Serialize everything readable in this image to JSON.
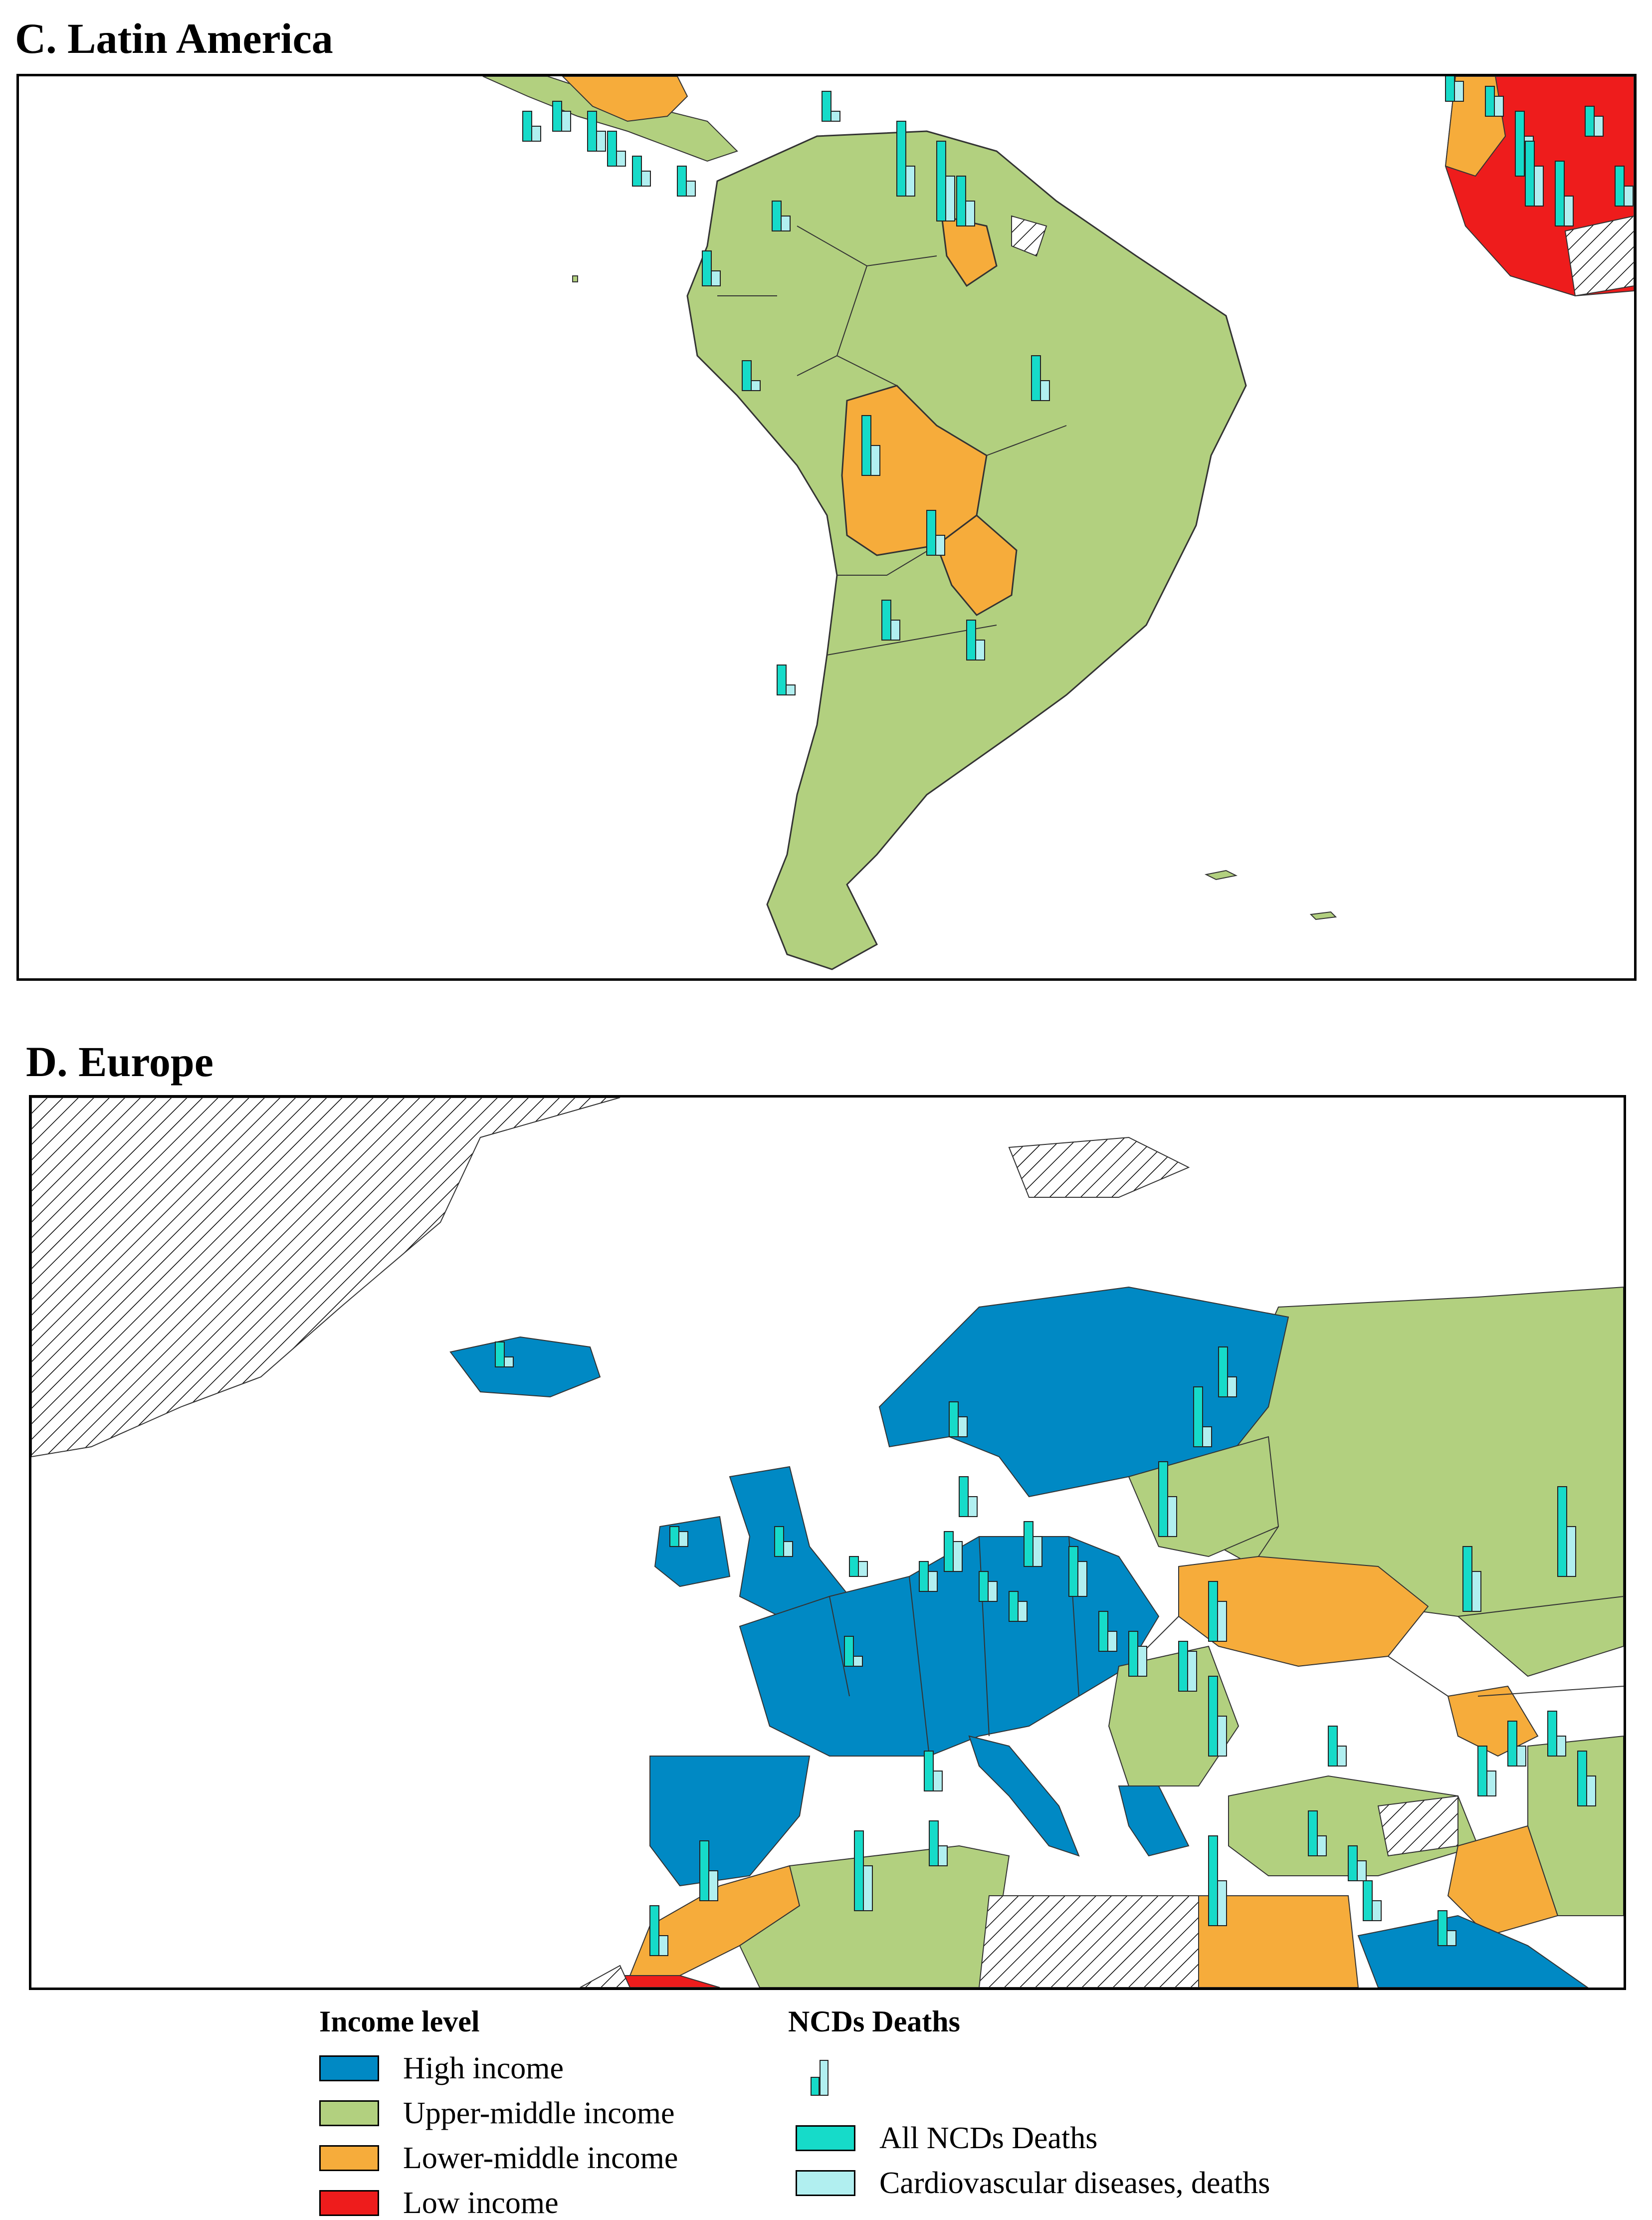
{
  "panels": {
    "latin_america": {
      "title": "C. Latin America"
    },
    "europe": {
      "title": "D. Europe"
    }
  },
  "colors": {
    "high_income": "#0089c4",
    "upper_middle_income": "#b2d07f",
    "lower_middle_income": "#f6ac3b",
    "low_income": "#ee1c1c",
    "no_data_hatch": "#000000",
    "all_ncds_bar": "#16dbc9",
    "cvd_bar": "#b1eff0",
    "water": "#ffffff"
  },
  "legend": {
    "income_title": "Income level",
    "income_items": [
      {
        "label": "High income",
        "color": "#0089c4"
      },
      {
        "label": "Upper-middle income",
        "color": "#b2d07f"
      },
      {
        "label": "Lower-middle income",
        "color": "#f6ac3b"
      },
      {
        "label": "Low income",
        "color": "#ee1c1c"
      }
    ],
    "deaths_title": "NCDs Deaths",
    "deaths_items": [
      {
        "label": "All NCDs Deaths",
        "color": "#16dbc9"
      },
      {
        "label": "Cardiovascular diseases, deaths",
        "color": "#b1eff0"
      }
    ]
  }
}
